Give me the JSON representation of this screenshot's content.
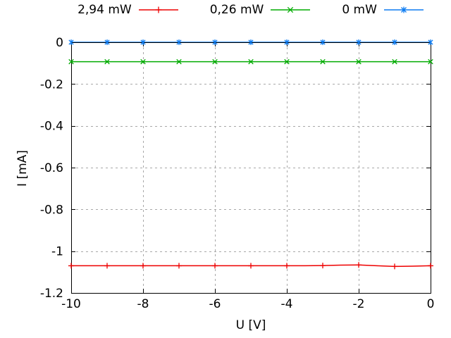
{
  "figure": {
    "background": "#ffffff",
    "border_color": "#000000",
    "text_color": "#000000"
  },
  "chart_data": {
    "type": "line",
    "title": "",
    "xlabel": "U [V]",
    "ylabel": "I [mA]",
    "xlim": [
      -10,
      0
    ],
    "ylim": [
      -1.2,
      0
    ],
    "x_ticks": [
      -10,
      -8,
      -6,
      -4,
      -2,
      0
    ],
    "x_tick_labels": [
      "-10",
      "-8",
      "-6",
      "-4",
      "-2",
      "0"
    ],
    "y_ticks": [
      0,
      -0.2,
      -0.4,
      -0.6,
      -0.8,
      -1,
      -1.2
    ],
    "y_tick_labels": [
      "0",
      "-0.2",
      "-0.4",
      "-0.6",
      "-0.8",
      "-1",
      "-1.2"
    ],
    "grid": true,
    "grid_color": "#a8a8a8",
    "legend_position": "above-plot-center",
    "x": [
      -10,
      -9.5,
      -9,
      -8.5,
      -8,
      -7.5,
      -7,
      -6.5,
      -6,
      -5.5,
      -5,
      -4.5,
      -4,
      -3.5,
      -3,
      -2.5,
      -2,
      -1.5,
      -1,
      -0.5,
      0
    ],
    "marker_every": 2,
    "series": [
      {
        "name": "2,94 mW",
        "color": "#ee0000",
        "marker": "plus",
        "values": [
          -1.07,
          -1.07,
          -1.07,
          -1.07,
          -1.07,
          -1.07,
          -1.07,
          -1.07,
          -1.07,
          -1.07,
          -1.07,
          -1.07,
          -1.07,
          -1.07,
          -1.069,
          -1.067,
          -1.066,
          -1.07,
          -1.073,
          -1.072,
          -1.07
        ]
      },
      {
        "name": "0,26 mW",
        "color": "#00ab00",
        "marker": "cross",
        "values": [
          -0.093,
          -0.093,
          -0.093,
          -0.093,
          -0.093,
          -0.093,
          -0.093,
          -0.093,
          -0.093,
          -0.093,
          -0.093,
          -0.093,
          -0.093,
          -0.093,
          -0.093,
          -0.093,
          -0.093,
          -0.093,
          -0.093,
          -0.093,
          -0.093
        ]
      },
      {
        "name": "0 mW",
        "color": "#0d7cf2",
        "marker": "asterisk",
        "values": [
          0,
          0,
          0,
          0,
          0,
          0,
          0,
          0,
          0,
          0,
          0,
          0,
          0,
          0,
          0,
          0,
          0,
          0,
          0,
          0,
          0
        ]
      }
    ]
  }
}
